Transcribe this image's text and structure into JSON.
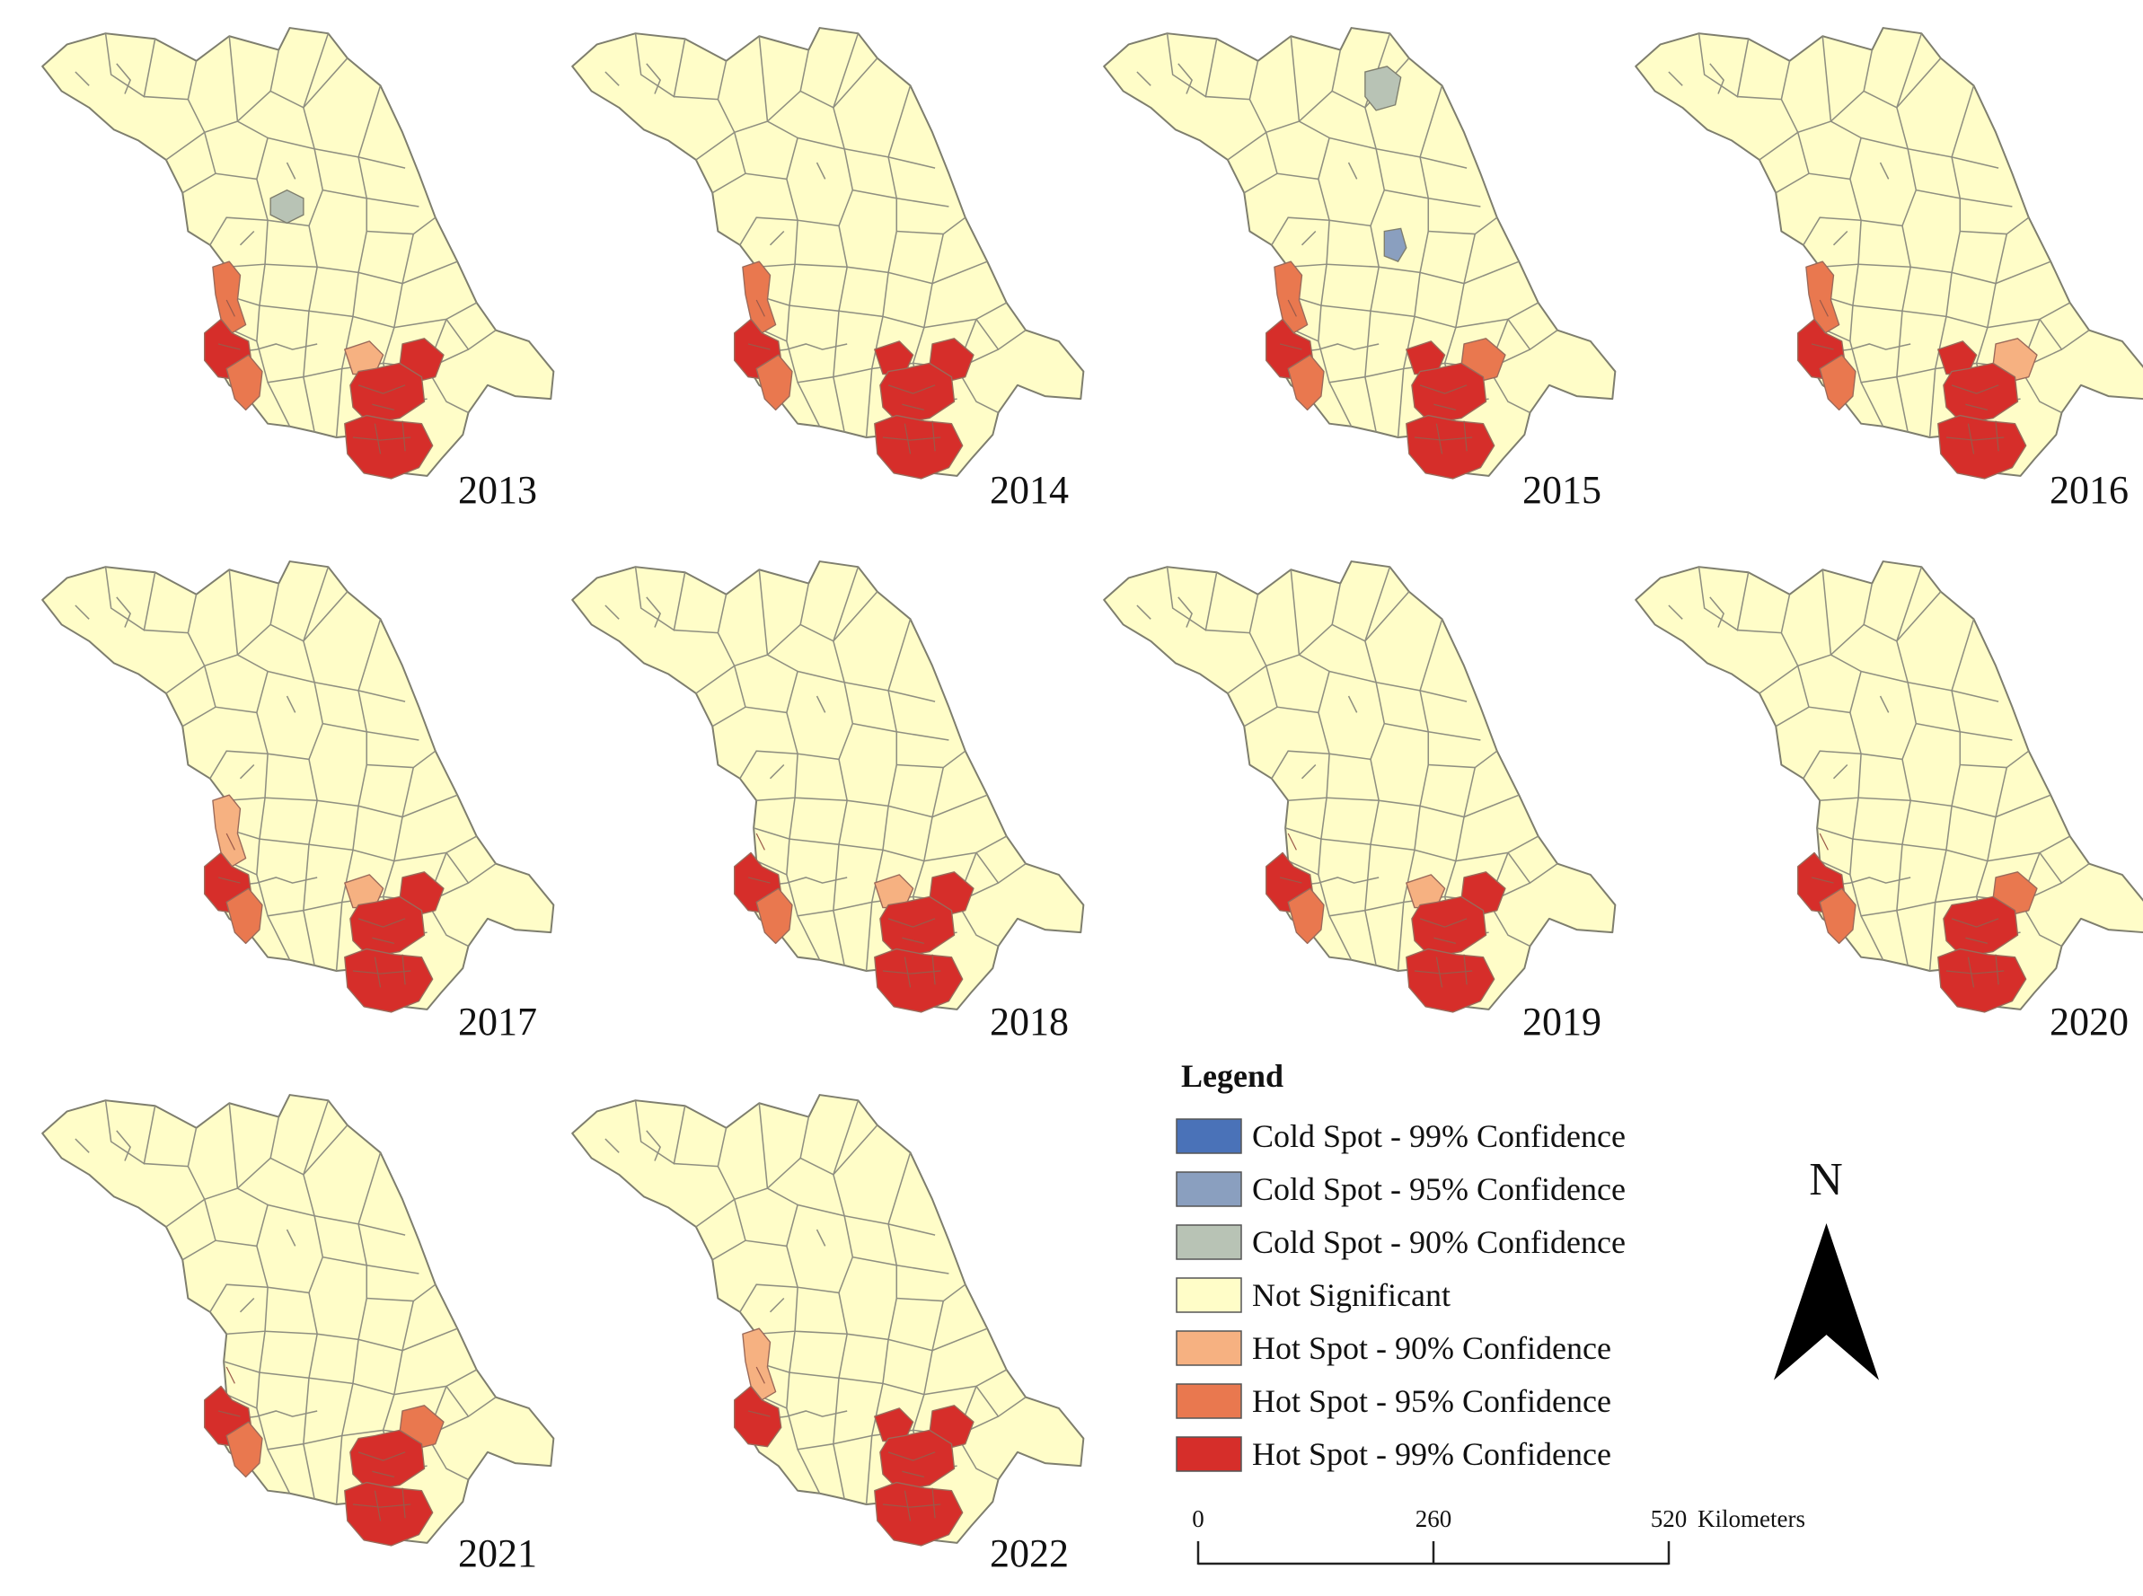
{
  "colors": {
    "not_significant": "#FFFDC8",
    "cold_99": "#4A72B8",
    "cold_95": "#8A9FBF",
    "cold_90": "#B8C3B5",
    "hot_90": "#F6B181",
    "hot_95": "#E9784F",
    "hot_99": "#D62E2A",
    "boundary": "#8A8A7A"
  },
  "maps": [
    {
      "year": "2013",
      "hotspots": {
        "west_upper": "hot_95",
        "west_lower": "hot_99",
        "west_south": "hot_95",
        "se_north": "hot_90",
        "se_east": "hot_99",
        "se_core": "hot_99",
        "se_south": "hot_99"
      },
      "coldspots": {
        "central": "cold_90"
      }
    },
    {
      "year": "2014",
      "hotspots": {
        "west_upper": "hot_95",
        "west_lower": "hot_99",
        "west_south": "hot_95",
        "se_north": "hot_99",
        "se_east": "hot_99",
        "se_core": "hot_99",
        "se_south": "hot_99"
      },
      "coldspots": {}
    },
    {
      "year": "2015",
      "hotspots": {
        "west_upper": "hot_95",
        "west_lower": "hot_99",
        "west_south": "hot_95",
        "se_north": "hot_99",
        "se_east": "hot_95",
        "se_core": "hot_99",
        "se_south": "hot_99"
      },
      "coldspots": {
        "north": "cold_90",
        "mid": "cold_95"
      }
    },
    {
      "year": "2016",
      "hotspots": {
        "west_upper": "hot_95",
        "west_lower": "hot_99",
        "west_south": "hot_95",
        "se_north": "hot_99",
        "se_east": "hot_90",
        "se_core": "hot_99",
        "se_south": "hot_99"
      },
      "coldspots": {}
    },
    {
      "year": "2017",
      "hotspots": {
        "west_upper": "hot_90",
        "west_lower": "hot_99",
        "west_south": "hot_95",
        "se_north": "hot_90",
        "se_east": "hot_99",
        "se_core": "hot_99",
        "se_south": "hot_99"
      },
      "coldspots": {}
    },
    {
      "year": "2018",
      "hotspots": {
        "west_upper": "not_significant",
        "west_lower": "hot_99",
        "west_south": "hot_95",
        "se_north": "hot_90",
        "se_east": "hot_99",
        "se_core": "hot_99",
        "se_south": "hot_99"
      },
      "coldspots": {}
    },
    {
      "year": "2019",
      "hotspots": {
        "west_upper": "not_significant",
        "west_lower": "hot_99",
        "west_south": "hot_95",
        "se_north": "hot_90",
        "se_east": "hot_99",
        "se_core": "hot_99",
        "se_south": "hot_99"
      },
      "coldspots": {}
    },
    {
      "year": "2020",
      "hotspots": {
        "west_upper": "not_significant",
        "west_lower": "hot_99",
        "west_south": "hot_95",
        "se_north": "not_significant",
        "se_east": "hot_95",
        "se_core": "hot_99",
        "se_south": "hot_99"
      },
      "coldspots": {}
    },
    {
      "year": "2021",
      "hotspots": {
        "west_upper": "not_significant",
        "west_lower": "hot_99",
        "west_south": "hot_95",
        "se_north": "not_significant",
        "se_east": "hot_95",
        "se_core": "hot_99",
        "se_south": "hot_99"
      },
      "coldspots": {}
    },
    {
      "year": "2022",
      "hotspots": {
        "west_upper": "hot_90",
        "west_lower": "hot_99",
        "west_south": "not_significant",
        "se_north": "hot_99",
        "se_east": "hot_99",
        "se_core": "hot_99",
        "se_south": "hot_99"
      },
      "coldspots": {}
    }
  ],
  "legend": {
    "title": "Legend",
    "items": [
      {
        "label": "Cold Spot - 99% Confidence",
        "color_key": "cold_99"
      },
      {
        "label": "Cold Spot - 95% Confidence",
        "color_key": "cold_95"
      },
      {
        "label": "Cold Spot - 90% Confidence",
        "color_key": "cold_90"
      },
      {
        "label": "Not Significant",
        "color_key": "not_significant"
      },
      {
        "label": "Hot Spot - 90% Confidence",
        "color_key": "hot_90"
      },
      {
        "label": "Hot Spot - 95% Confidence",
        "color_key": "hot_95"
      },
      {
        "label": "Hot Spot - 99% Confidence",
        "color_key": "hot_99"
      }
    ]
  },
  "north_arrow": {
    "label": "N"
  },
  "scale_bar": {
    "ticks": [
      "0",
      "260",
      "520"
    ],
    "unit": "Kilometers"
  }
}
